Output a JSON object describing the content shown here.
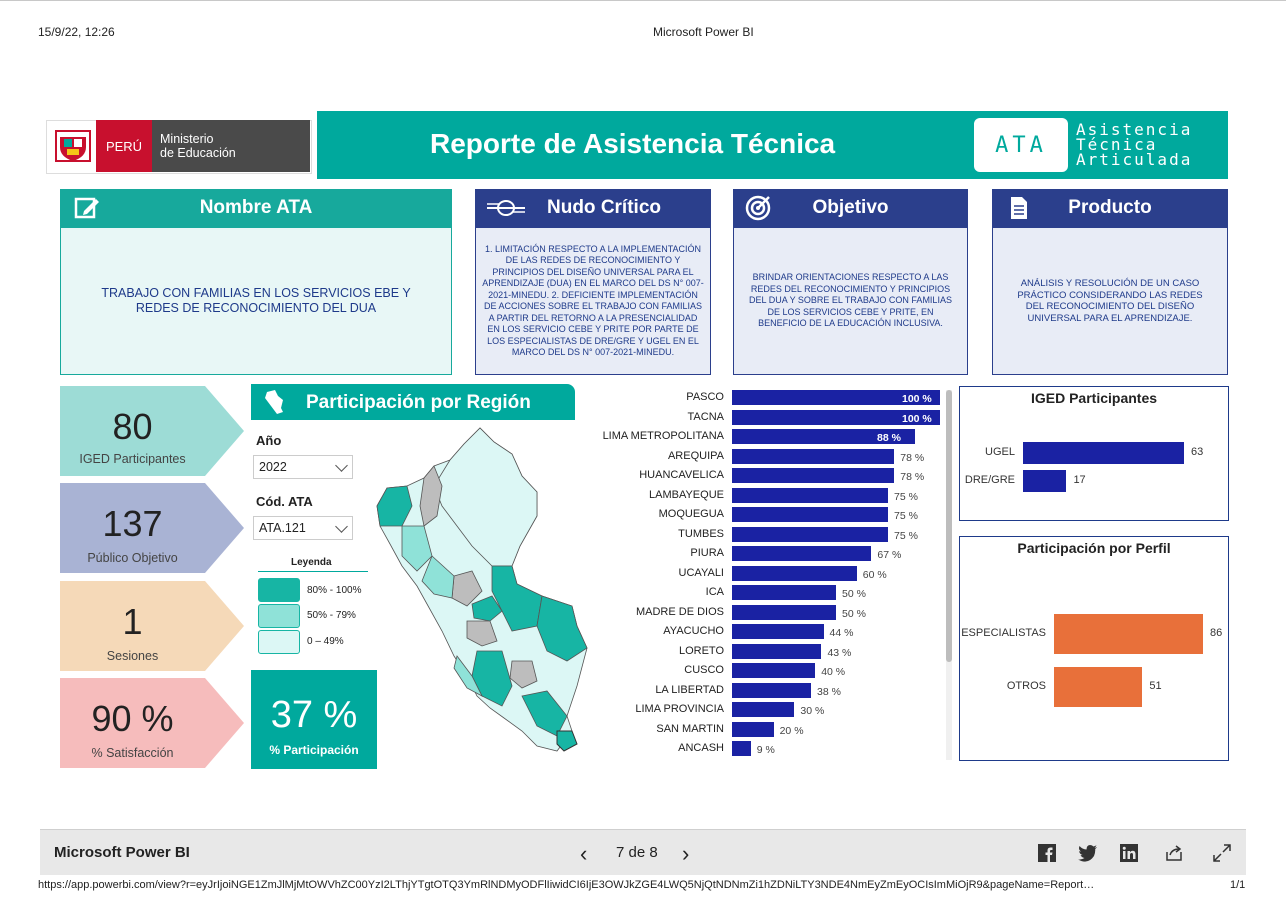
{
  "print_header": {
    "datetime": "15/9/22, 12:26",
    "app_title": "Microsoft Power BI"
  },
  "header": {
    "peru_label": "PERÚ",
    "ministry_line1": "Ministerio",
    "ministry_line2": "de Educación",
    "title": "Reporte de Asistencia Técnica",
    "ata_badge": "ATA",
    "ata_line1": "Asistencia",
    "ata_line2": "Técnica",
    "ata_line3": "Articulada"
  },
  "cards": {
    "nombre": {
      "title": "Nombre ATA",
      "text": "TRABAJO CON FAMILIAS EN LOS SERVICIOS EBE Y REDES DE RECONOCIMIENTO DEL DUA",
      "icon": "edit-icon"
    },
    "nudo": {
      "title": "Nudo Crítico",
      "text": "1. LIMITACIÓN RESPECTO A LA IMPLEMENTACIÓN DE LAS REDES DE RECONOCIMIENTO Y PRINCIPIOS DEL DISEÑO UNIVERSAL PARA EL APRENDIZAJE (DUA) EN EL MARCO DEL DS N° 007-2021-MINEDU. 2. DEFICIENTE IMPLEMENTACIÓN DE ACCIONES SOBRE EL TRABAJO CON FAMILIAS A PARTIR DEL RETORNO A LA PRESENCIALIDAD EN LOS SERVICIO CEBE Y PRITE POR PARTE DE LOS ESPECIALISTAS DE DRE/GRE Y UGEL EN EL MARCO DEL DS N° 007-2021-MINEDU.",
      "icon": "knot-icon"
    },
    "objetivo": {
      "title": "Objetivo",
      "text": "BRINDAR ORIENTACIONES RESPECTO A LAS REDES DEL RECONOCIMIENTO Y PRINCIPIOS DEL DUA Y SOBRE EL TRABAJO CON FAMILIAS DE LOS SERVICIOS CEBE Y PRITE, EN BENEFICIO DE LA EDUCACIÓN INCLUSIVA.",
      "icon": "target-icon"
    },
    "producto": {
      "title": "Producto",
      "text": "ANÁLISIS Y RESOLUCIÓN DE UN CASO PRÁCTICO CONSIDERANDO LAS REDES DEL RECONOCIMIENTO DEL DISEÑO UNIVERSAL PARA EL APRENDIZAJE.",
      "icon": "document-icon"
    }
  },
  "kpis": [
    {
      "value": "80",
      "label": "IGED Participantes",
      "color": "#9ddcd6"
    },
    {
      "value": "137",
      "label": "Público Objetivo",
      "color": "#a9b3d4"
    },
    {
      "value": "1",
      "label": "Sesiones",
      "color": "#f5d9b8"
    },
    {
      "value": "90 %",
      "label": "% Satisfacción",
      "color": "#f6bcbc"
    }
  ],
  "region": {
    "title": "Participación por Región",
    "year_label": "Año",
    "year_value": "2022",
    "code_label": "Cód. ATA",
    "code_value": "ATA.121",
    "legend_title": "Leyenda",
    "legend": [
      {
        "label": "80% - 100%",
        "color": "#17b5a4"
      },
      {
        "label": "50% - 79%",
        "color": "#8fe2d8"
      },
      {
        "label": "0 – 49%",
        "color": "#dcf7f5"
      }
    ],
    "participation_value": "37 %",
    "participation_label": "% Participación"
  },
  "chart_data": [
    {
      "type": "bar",
      "orientation": "horizontal",
      "categories": [
        "PASCO",
        "TACNA",
        "LIMA METROPOLITANA",
        "AREQUIPA",
        "HUANCAVELICA",
        "LAMBAYEQUE",
        "MOQUEGUA",
        "TUMBES",
        "PIURA",
        "UCAYALI",
        "ICA",
        "MADRE DE DIOS",
        "AYACUCHO",
        "LORETO",
        "CUSCO",
        "LA LIBERTAD",
        "LIMA PROVINCIA",
        "SAN MARTIN",
        "ANCASH"
      ],
      "values": [
        100,
        100,
        88,
        78,
        78,
        75,
        75,
        75,
        67,
        60,
        50,
        50,
        44,
        43,
        40,
        38,
        30,
        20,
        9
      ],
      "value_labels": [
        "100 %",
        "100 %",
        "88 %",
        "78 %",
        "78 %",
        "75 %",
        "75 %",
        "75 %",
        "67 %",
        "60 %",
        "50 %",
        "50 %",
        "44 %",
        "43 %",
        "40 %",
        "38 %",
        "30 %",
        "20 %",
        "9 %"
      ],
      "xlim": [
        0,
        100
      ]
    },
    {
      "type": "bar",
      "orientation": "horizontal",
      "title": "IGED Participantes",
      "categories": [
        "UGEL",
        "DRE/GRE"
      ],
      "values": [
        63,
        17
      ],
      "xlim": [
        0,
        63
      ]
    },
    {
      "type": "bar",
      "orientation": "horizontal",
      "title": "Participación por Perfil",
      "categories": [
        "ESPECIALISTAS",
        "OTROS"
      ],
      "values": [
        86,
        51
      ],
      "xlim": [
        0,
        86
      ]
    }
  ],
  "colors": {
    "teal": "#00a99d",
    "navy": "#2b3f8c",
    "bar_blue": "#1a22a3",
    "orange": "#e8703a"
  },
  "footer": {
    "brand": "Microsoft Power BI",
    "page_indicator": "7 de 8",
    "url": "https://app.powerbi.com/view?r=eyJrIjoiNGE1ZmJlMjMtOWVhZC00YzI2LThjYTgtOTQ3YmRlNDMyODFlIiwidCI6IjE3OWJkZGE4LWQ5NjQtNDNmZi1hZDNiLTY3NDE4NmEyZmEyOCIsImMiOjR9&pageName=Report…",
    "page_count": "1/1"
  }
}
